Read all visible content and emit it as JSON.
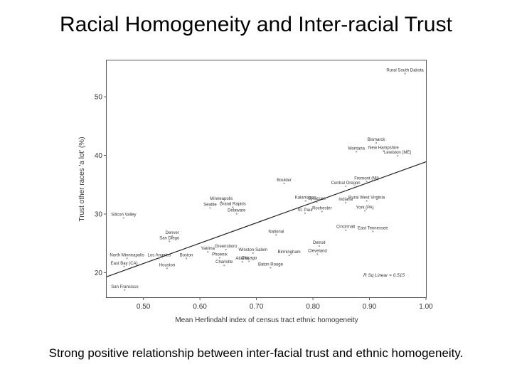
{
  "slide": {
    "title": "Racial Homogeneity and Inter-racial Trust",
    "caption": "Strong positive relationship between inter-facial trust and ethnic homogeneity."
  },
  "chart_data": {
    "type": "scatter",
    "xlabel": "Mean Herfindahl index of census tract ethnic homogeneity",
    "ylabel": "Trust other races 'a lot' (%)",
    "xlim": [
      0.435,
      1.0
    ],
    "ylim": [
      15.8,
      56.2
    ],
    "x_ticks": [
      "0.50",
      "0.60",
      "0.70",
      "0.80",
      "0.90",
      "1.00"
    ],
    "x_tick_values": [
      0.5,
      0.6,
      0.7,
      0.8,
      0.9,
      1.0
    ],
    "y_ticks": [
      "20",
      "30",
      "40",
      "50"
    ],
    "y_tick_values": [
      20,
      30,
      40,
      50
    ],
    "grid": false,
    "annotation": "R Sq Linear = 0.515",
    "fit_line": {
      "x": [
        0.435,
        1.0
      ],
      "y": [
        19.3,
        38.9
      ]
    },
    "points": [
      {
        "label": "Rural South Dakota",
        "x": 0.963,
        "y": 54.3
      },
      {
        "label": "Bismarck",
        "x": 0.912,
        "y": 42.5
      },
      {
        "label": "Montana",
        "x": 0.877,
        "y": 41.0
      },
      {
        "label": "New Hampshire",
        "x": 0.925,
        "y": 41.1
      },
      {
        "label": "Lewiston (ME)",
        "x": 0.95,
        "y": 40.3
      },
      {
        "label": "Boulder",
        "x": 0.749,
        "y": 35.6
      },
      {
        "label": "Fremont (MI)",
        "x": 0.895,
        "y": 35.9
      },
      {
        "label": "Central Oregon",
        "x": 0.858,
        "y": 35.1
      },
      {
        "label": "Minneapolis",
        "x": 0.638,
        "y": 32.4
      },
      {
        "label": "Seattle",
        "x": 0.618,
        "y": 31.4
      },
      {
        "label": "Grand Rapids",
        "x": 0.658,
        "y": 31.5
      },
      {
        "label": "Kalamazoo",
        "x": 0.787,
        "y": 32.6
      },
      {
        "label": "Syracuse",
        "x": 0.807,
        "y": 32.4
      },
      {
        "label": "Indiana",
        "x": 0.858,
        "y": 32.3
      },
      {
        "label": "Rural West Virginia",
        "x": 0.895,
        "y": 32.6
      },
      {
        "label": "Delaware",
        "x": 0.665,
        "y": 30.4
      },
      {
        "label": "St. Paul",
        "x": 0.786,
        "y": 30.5
      },
      {
        "label": "Rochester",
        "x": 0.816,
        "y": 30.8
      },
      {
        "label": "York (PA)",
        "x": 0.892,
        "y": 30.9
      },
      {
        "label": "Silicon Valley",
        "x": 0.465,
        "y": 29.7
      },
      {
        "label": "Cincinnati",
        "x": 0.858,
        "y": 27.6
      },
      {
        "label": "East Tennessee",
        "x": 0.906,
        "y": 27.4
      },
      {
        "label": "Denver",
        "x": 0.551,
        "y": 26.6
      },
      {
        "label": "National",
        "x": 0.735,
        "y": 26.8
      },
      {
        "label": "San Diego",
        "x": 0.546,
        "y": 25.7
      },
      {
        "label": "Detroit",
        "x": 0.811,
        "y": 24.9
      },
      {
        "label": "Greensboro",
        "x": 0.646,
        "y": 24.3
      },
      {
        "label": "Yakima",
        "x": 0.614,
        "y": 23.9
      },
      {
        "label": "Winston-Salem",
        "x": 0.694,
        "y": 23.7
      },
      {
        "label": "Cleveland",
        "x": 0.808,
        "y": 23.5
      },
      {
        "label": "Birmingham",
        "x": 0.758,
        "y": 23.3
      },
      {
        "label": "North Minneapolis",
        "x": 0.471,
        "y": 22.8
      },
      {
        "label": "Los Angeles",
        "x": 0.528,
        "y": 22.8
      },
      {
        "label": "Boston",
        "x": 0.576,
        "y": 22.8
      },
      {
        "label": "Phoenix",
        "x": 0.635,
        "y": 22.9
      },
      {
        "label": "Atlanta",
        "x": 0.675,
        "y": 22.2
      },
      {
        "label": "Chicago",
        "x": 0.687,
        "y": 22.3
      },
      {
        "label": "Charlotte",
        "x": 0.643,
        "y": 21.6
      },
      {
        "label": "East Bay (CA)",
        "x": 0.466,
        "y": 21.4
      },
      {
        "label": "Houston",
        "x": 0.542,
        "y": 21.1
      },
      {
        "label": "Baton Rouge",
        "x": 0.725,
        "y": 21.2
      },
      {
        "label": "San Francisco",
        "x": 0.467,
        "y": 17.4
      }
    ]
  }
}
